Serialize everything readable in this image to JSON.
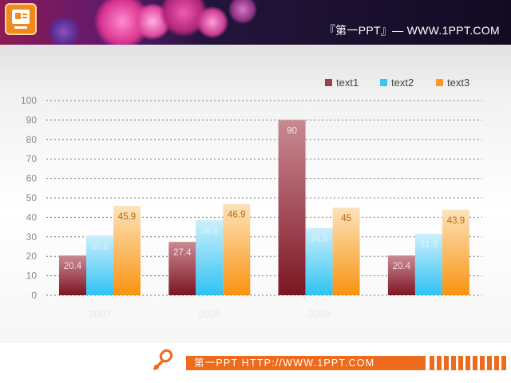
{
  "header": {
    "title": "『第一PPT』— WWW.1PPT.COM",
    "logo_icon": "presentation-icon"
  },
  "footer": {
    "text": "第一PPT HTTP://WWW.1PPT.COM",
    "icon": "link-icon"
  },
  "colors": {
    "text1": "#9a3f4c",
    "text2": "#37c6f4",
    "text3": "#fb9a24",
    "footer_accent": "#ee6a1d"
  },
  "chart_data": {
    "type": "bar",
    "categories": [
      "2007",
      "2008",
      "2009",
      ""
    ],
    "series": [
      {
        "name": "text1",
        "values": [
          20.4,
          27.4,
          90,
          20.4
        ]
      },
      {
        "name": "text2",
        "values": [
          30.6,
          38.6,
          34.6,
          31.6
        ]
      },
      {
        "name": "text3",
        "values": [
          45.9,
          46.9,
          45,
          43.9
        ]
      }
    ],
    "yticks": [
      0,
      10,
      20,
      30,
      40,
      50,
      60,
      70,
      80,
      90,
      100
    ],
    "ylim": [
      0,
      100
    ],
    "grid": true,
    "legend_position": "top-right",
    "data_labels": true
  }
}
